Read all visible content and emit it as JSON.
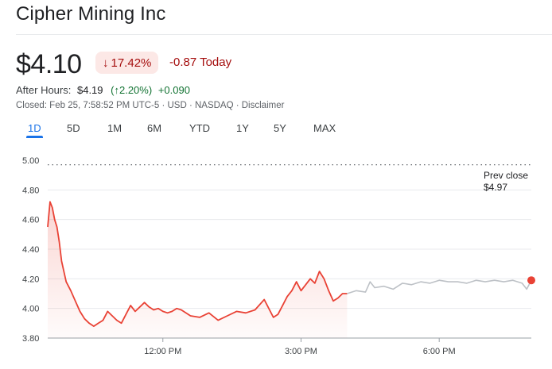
{
  "header": {
    "title": "Cipher Mining Inc"
  },
  "quote": {
    "price": "$4.10",
    "change_pct": "17.42%",
    "change_arrow": "↓",
    "change_abs": "-0.87 Today"
  },
  "after_hours": {
    "label": "After Hours:",
    "price": "$4.19",
    "pct_text": "(↑2.20%)",
    "abs": "+0.090"
  },
  "meta": {
    "text": "Closed: Feb 25, 7:58:52 PM UTC-5 · USD · NASDAQ · Disclaimer"
  },
  "tabs": [
    {
      "label": "1D",
      "active": true
    },
    {
      "label": "5D"
    },
    {
      "label": "1M"
    },
    {
      "label": "6M"
    },
    {
      "label": "YTD"
    },
    {
      "label": "1Y"
    },
    {
      "label": "5Y"
    },
    {
      "label": "MAX"
    }
  ],
  "colors": {
    "down": "#e94235",
    "up": "#137333",
    "afterhours_line": "#bdc1c6",
    "accent": "#1a73e8"
  },
  "chart_data": {
    "type": "line",
    "y_ticks": [
      "5.00",
      "4.80",
      "4.60",
      "4.40",
      "4.20",
      "4.00",
      "3.80"
    ],
    "x_ticks": [
      "12:00 PM",
      "3:00 PM",
      "6:00 PM"
    ],
    "ylim": [
      3.8,
      5.0
    ],
    "prev_close_label": "Prev close",
    "prev_close_value_label": "$4.97",
    "prev_close": 4.97,
    "x_range_hours": [
      9.5,
      20.0
    ],
    "series": [
      {
        "session": "regular",
        "x": [
          9.5,
          9.55,
          9.6,
          9.65,
          9.7,
          9.75,
          9.8,
          9.9,
          10.0,
          10.1,
          10.2,
          10.3,
          10.4,
          10.5,
          10.6,
          10.7,
          10.8,
          10.9,
          11.0,
          11.1,
          11.2,
          11.3,
          11.4,
          11.5,
          11.6,
          11.7,
          11.8,
          11.9,
          12.0,
          12.1,
          12.2,
          12.3,
          12.4,
          12.5,
          12.6,
          12.8,
          13.0,
          13.2,
          13.4,
          13.6,
          13.8,
          14.0,
          14.2,
          14.4,
          14.5,
          14.6,
          14.7,
          14.8,
          14.9,
          15.0,
          15.1,
          15.2,
          15.3,
          15.4,
          15.5,
          15.6,
          15.7,
          15.8,
          15.9,
          16.0
        ],
        "y": [
          4.55,
          4.72,
          4.68,
          4.6,
          4.55,
          4.45,
          4.32,
          4.18,
          4.12,
          4.05,
          3.98,
          3.93,
          3.9,
          3.88,
          3.9,
          3.92,
          3.98,
          3.95,
          3.92,
          3.9,
          3.96,
          4.02,
          3.98,
          4.01,
          4.04,
          4.01,
          3.99,
          4.0,
          3.98,
          3.97,
          3.98,
          4.0,
          3.99,
          3.97,
          3.95,
          3.94,
          3.97,
          3.92,
          3.95,
          3.98,
          3.97,
          3.99,
          4.06,
          3.94,
          3.96,
          4.02,
          4.08,
          4.12,
          4.18,
          4.12,
          4.16,
          4.2,
          4.17,
          4.25,
          4.2,
          4.12,
          4.05,
          4.07,
          4.1,
          4.1
        ],
        "color": "#e94235"
      },
      {
        "session": "after_hours",
        "x": [
          16.0,
          16.2,
          16.4,
          16.5,
          16.6,
          16.8,
          17.0,
          17.2,
          17.4,
          17.6,
          17.8,
          18.0,
          18.2,
          18.4,
          18.6,
          18.8,
          19.0,
          19.2,
          19.4,
          19.6,
          19.8,
          19.9,
          20.0
        ],
        "y": [
          4.1,
          4.12,
          4.11,
          4.18,
          4.14,
          4.15,
          4.13,
          4.17,
          4.16,
          4.18,
          4.17,
          4.19,
          4.18,
          4.18,
          4.17,
          4.19,
          4.18,
          4.19,
          4.18,
          4.19,
          4.17,
          4.13,
          4.19
        ],
        "color": "#bdc1c6"
      }
    ]
  }
}
